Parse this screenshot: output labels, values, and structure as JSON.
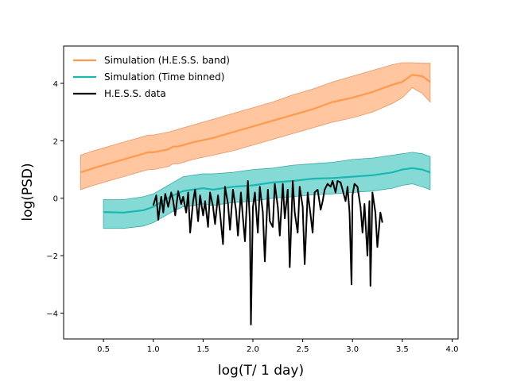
{
  "chart_data": {
    "type": "line",
    "title": "",
    "xlabel": "log(T/ 1 day)",
    "ylabel": "log(PSD)",
    "xlim": [
      0.1,
      4.06
    ],
    "ylim": [
      -4.9,
      5.3
    ],
    "xticks": [
      "0.5",
      "1.0",
      "1.5",
      "2.0",
      "2.5",
      "3.0",
      "3.5",
      "4.0"
    ],
    "xtick_values": [
      0.5,
      1.0,
      1.5,
      2.0,
      2.5,
      3.0,
      3.5,
      4.0
    ],
    "yticks": [
      "−4",
      "−2",
      "0",
      "2",
      "4"
    ],
    "ytick_values": [
      -4,
      -2,
      0,
      2,
      4
    ],
    "grid": false,
    "legend_position": "top-left",
    "series": [
      {
        "name": "Simulation (H.E.S.S. band)",
        "color": "#ff9a4d",
        "band_color": "#ffc49a",
        "band_edge_color": "#e88f5a",
        "x": [
          0.27,
          0.4,
          0.6,
          0.8,
          0.95,
          1.0,
          1.15,
          1.2,
          1.25,
          1.4,
          1.6,
          1.8,
          2.0,
          2.2,
          2.4,
          2.6,
          2.8,
          3.0,
          3.2,
          3.4,
          3.5,
          3.6,
          3.7,
          3.78
        ],
        "y": [
          0.9,
          1.05,
          1.25,
          1.45,
          1.6,
          1.6,
          1.7,
          1.8,
          1.8,
          1.95,
          2.1,
          2.3,
          2.5,
          2.7,
          2.9,
          3.1,
          3.35,
          3.5,
          3.7,
          3.95,
          4.05,
          4.3,
          4.25,
          4.05
        ],
        "lower": [
          0.3,
          0.45,
          0.65,
          0.85,
          1.0,
          1.0,
          1.1,
          1.2,
          1.2,
          1.35,
          1.5,
          1.65,
          1.85,
          2.05,
          2.25,
          2.45,
          2.65,
          2.8,
          3.0,
          3.3,
          3.5,
          3.85,
          3.65,
          3.35
        ],
        "upper": [
          1.5,
          1.65,
          1.85,
          2.05,
          2.2,
          2.2,
          2.3,
          2.35,
          2.4,
          2.55,
          2.75,
          2.95,
          3.15,
          3.35,
          3.6,
          3.8,
          4.05,
          4.25,
          4.45,
          4.65,
          4.72,
          4.72,
          4.7,
          4.7
        ]
      },
      {
        "name": "Simulation (Time binned)",
        "color": "#1ab8b0",
        "band_color": "#7fd9d4",
        "band_edge_color": "#2aa8a2",
        "x": [
          0.5,
          0.7,
          0.9,
          1.0,
          1.1,
          1.2,
          1.3,
          1.4,
          1.5,
          1.6,
          1.8,
          2.0,
          2.2,
          2.4,
          2.6,
          2.8,
          3.0,
          3.2,
          3.4,
          3.5,
          3.6,
          3.7,
          3.78
        ],
        "y": [
          -0.48,
          -0.5,
          -0.42,
          -0.3,
          -0.08,
          0.1,
          0.25,
          0.3,
          0.35,
          0.3,
          0.4,
          0.45,
          0.55,
          0.6,
          0.68,
          0.7,
          0.75,
          0.8,
          0.9,
          1.0,
          1.05,
          1.0,
          0.9
        ],
        "lower": [
          -1.05,
          -1.05,
          -0.97,
          -0.85,
          -0.65,
          -0.45,
          -0.3,
          -0.25,
          -0.2,
          -0.25,
          -0.15,
          -0.1,
          0.0,
          0.05,
          0.12,
          0.15,
          0.2,
          0.25,
          0.35,
          0.45,
          0.5,
          0.4,
          0.3
        ],
        "upper": [
          -0.05,
          -0.05,
          0.05,
          0.15,
          0.35,
          0.55,
          0.75,
          0.8,
          0.85,
          0.85,
          0.9,
          1.0,
          1.05,
          1.15,
          1.2,
          1.25,
          1.35,
          1.4,
          1.5,
          1.55,
          1.6,
          1.55,
          1.45
        ]
      },
      {
        "name": "H.E.S.S. data",
        "color": "#000000",
        "x": [
          1.0,
          1.03,
          1.05,
          1.08,
          1.1,
          1.12,
          1.15,
          1.18,
          1.2,
          1.22,
          1.25,
          1.28,
          1.3,
          1.33,
          1.35,
          1.37,
          1.4,
          1.42,
          1.45,
          1.47,
          1.5,
          1.52,
          1.55,
          1.57,
          1.6,
          1.62,
          1.65,
          1.67,
          1.7,
          1.72,
          1.75,
          1.77,
          1.8,
          1.83,
          1.85,
          1.88,
          1.9,
          1.92,
          1.95,
          1.97,
          1.98,
          2.0,
          2.02,
          2.05,
          2.07,
          2.1,
          2.12,
          2.15,
          2.17,
          2.2,
          2.22,
          2.25,
          2.27,
          2.3,
          2.32,
          2.35,
          2.37,
          2.4,
          2.42,
          2.45,
          2.47,
          2.5,
          2.52,
          2.55,
          2.58,
          2.6,
          2.62,
          2.65,
          2.68,
          2.7,
          2.72,
          2.75,
          2.78,
          2.8,
          2.83,
          2.85,
          2.88,
          2.9,
          2.93,
          2.95,
          2.97,
          2.99,
          3.0,
          3.02,
          3.05,
          3.08,
          3.1,
          3.12,
          3.15,
          3.17,
          3.18,
          3.2,
          3.23,
          3.25,
          3.28,
          3.3
        ],
        "y": [
          -0.25,
          0.1,
          -0.75,
          0.05,
          -0.5,
          0.15,
          -0.3,
          0.2,
          -0.1,
          -0.6,
          0.25,
          -0.2,
          0.05,
          -0.5,
          0.2,
          -1.2,
          -0.1,
          0.3,
          -0.8,
          0.1,
          -0.6,
          -0.1,
          -1.0,
          0.2,
          -0.3,
          -0.9,
          0.1,
          -0.5,
          -1.6,
          0.4,
          -0.2,
          -1.1,
          0.3,
          -0.4,
          -1.3,
          0.2,
          -0.7,
          -1.5,
          0.6,
          -0.8,
          -4.4,
          -0.3,
          0.2,
          -1.2,
          0.4,
          -0.5,
          -2.2,
          0.3,
          -0.8,
          -1.0,
          0.5,
          -0.3,
          -1.3,
          0.5,
          -0.7,
          0.3,
          -2.4,
          0.6,
          -0.5,
          -1.2,
          0.4,
          -0.3,
          -2.3,
          0.2,
          -0.6,
          -1.2,
          0.2,
          0.3,
          -0.4,
          -0.1,
          0.3,
          0.5,
          0.4,
          0.6,
          0.2,
          0.6,
          0.55,
          0.3,
          -0.1,
          0.4,
          -0.5,
          -3.0,
          0.1,
          0.5,
          0.4,
          -0.3,
          -1.2,
          -0.2,
          -2.0,
          -0.1,
          -3.05,
          0.2,
          -0.5,
          -1.7,
          -0.5,
          -0.85
        ]
      }
    ]
  }
}
